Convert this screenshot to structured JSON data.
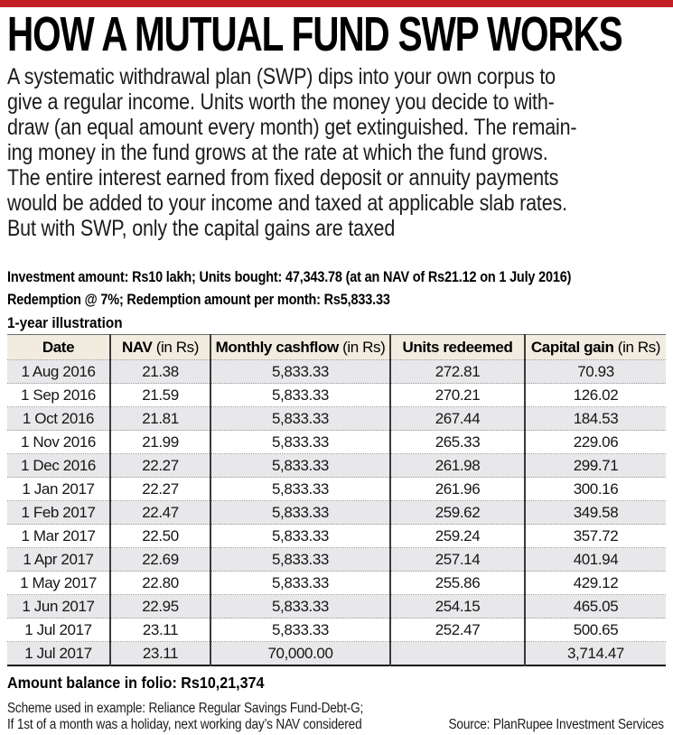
{
  "colors": {
    "accent_bar": "#c32026",
    "table_header_bg": "#f2ece0",
    "row_stripe": "#e8e7ea"
  },
  "header": {
    "title": "HOW A MUTUAL FUND SWP WORKS"
  },
  "intro": {
    "lines": [
      "A systematic withdrawal plan (SWP) dips into your own corpus to",
      "give a regular income. Units worth the money you decide to with-",
      "draw (an equal amount every month) get extinguished. The remain-",
      "ing money in the fund grows at the rate at which the fund grows.",
      "The entire interest earned from fixed deposit or annuity payments",
      "would be added to your income and taxed at applicable slab rates.",
      "But with SWP, only the capital gains are taxed"
    ]
  },
  "meta": {
    "investment_line": "Investment amount: Rs10 lakh; Units bought: 47,343.78 (at an NAV of Rs21.12 on 1 July 2016)",
    "redemption_line": "Redemption @ 7%; Redemption amount per month: Rs5,833.33"
  },
  "chart_data": {
    "type": "table",
    "title": "1-year illustration",
    "columns": [
      {
        "main": "Date",
        "suffix": ""
      },
      {
        "main": "NAV",
        "suffix": "(in Rs)"
      },
      {
        "main": "Monthly cashflow",
        "suffix": "(in Rs)"
      },
      {
        "main": "Units redeemed",
        "suffix": ""
      },
      {
        "main": "Capital gain",
        "suffix": "(in Rs)"
      }
    ],
    "rows": [
      [
        "1 Aug 2016",
        "21.38",
        "5,833.33",
        "272.81",
        "70.93"
      ],
      [
        "1 Sep 2016",
        "21.59",
        "5,833.33",
        "270.21",
        "126.02"
      ],
      [
        "1 Oct 2016",
        "21.81",
        "5,833.33",
        "267.44",
        "184.53"
      ],
      [
        "1 Nov 2016",
        "21.99",
        "5,833.33",
        "265.33",
        "229.06"
      ],
      [
        "1 Dec 2016",
        "22.27",
        "5,833.33",
        "261.98",
        "299.71"
      ],
      [
        "1 Jan 2017",
        "22.27",
        "5,833.33",
        "261.96",
        "300.16"
      ],
      [
        "1 Feb 2017",
        "22.47",
        "5,833.33",
        "259.62",
        "349.58"
      ],
      [
        "1 Mar 2017",
        "22.50",
        "5,833.33",
        "259.24",
        "357.72"
      ],
      [
        "1 Apr 2017",
        "22.69",
        "5,833.33",
        "257.14",
        "401.94"
      ],
      [
        "1 May 2017",
        "22.80",
        "5,833.33",
        "255.86",
        "429.12"
      ],
      [
        "1 Jun 2017",
        "22.95",
        "5,833.33",
        "254.15",
        "465.05"
      ],
      [
        "1 Jul 2017",
        "23.11",
        "5,833.33",
        "252.47",
        "500.65"
      ],
      [
        "1 Jul 2017",
        "23.11",
        "70,000.00",
        "",
        "3,714.47"
      ]
    ]
  },
  "footer": {
    "balance": "Amount balance in folio: Rs10,21,374",
    "note_line1": "Scheme used in example: Reliance Regular Savings Fund-Debt-G;",
    "note_line2": "If 1st of a month was a holiday, next working day’s NAV considered",
    "source": "Source: PlanRupee Investment Services"
  }
}
